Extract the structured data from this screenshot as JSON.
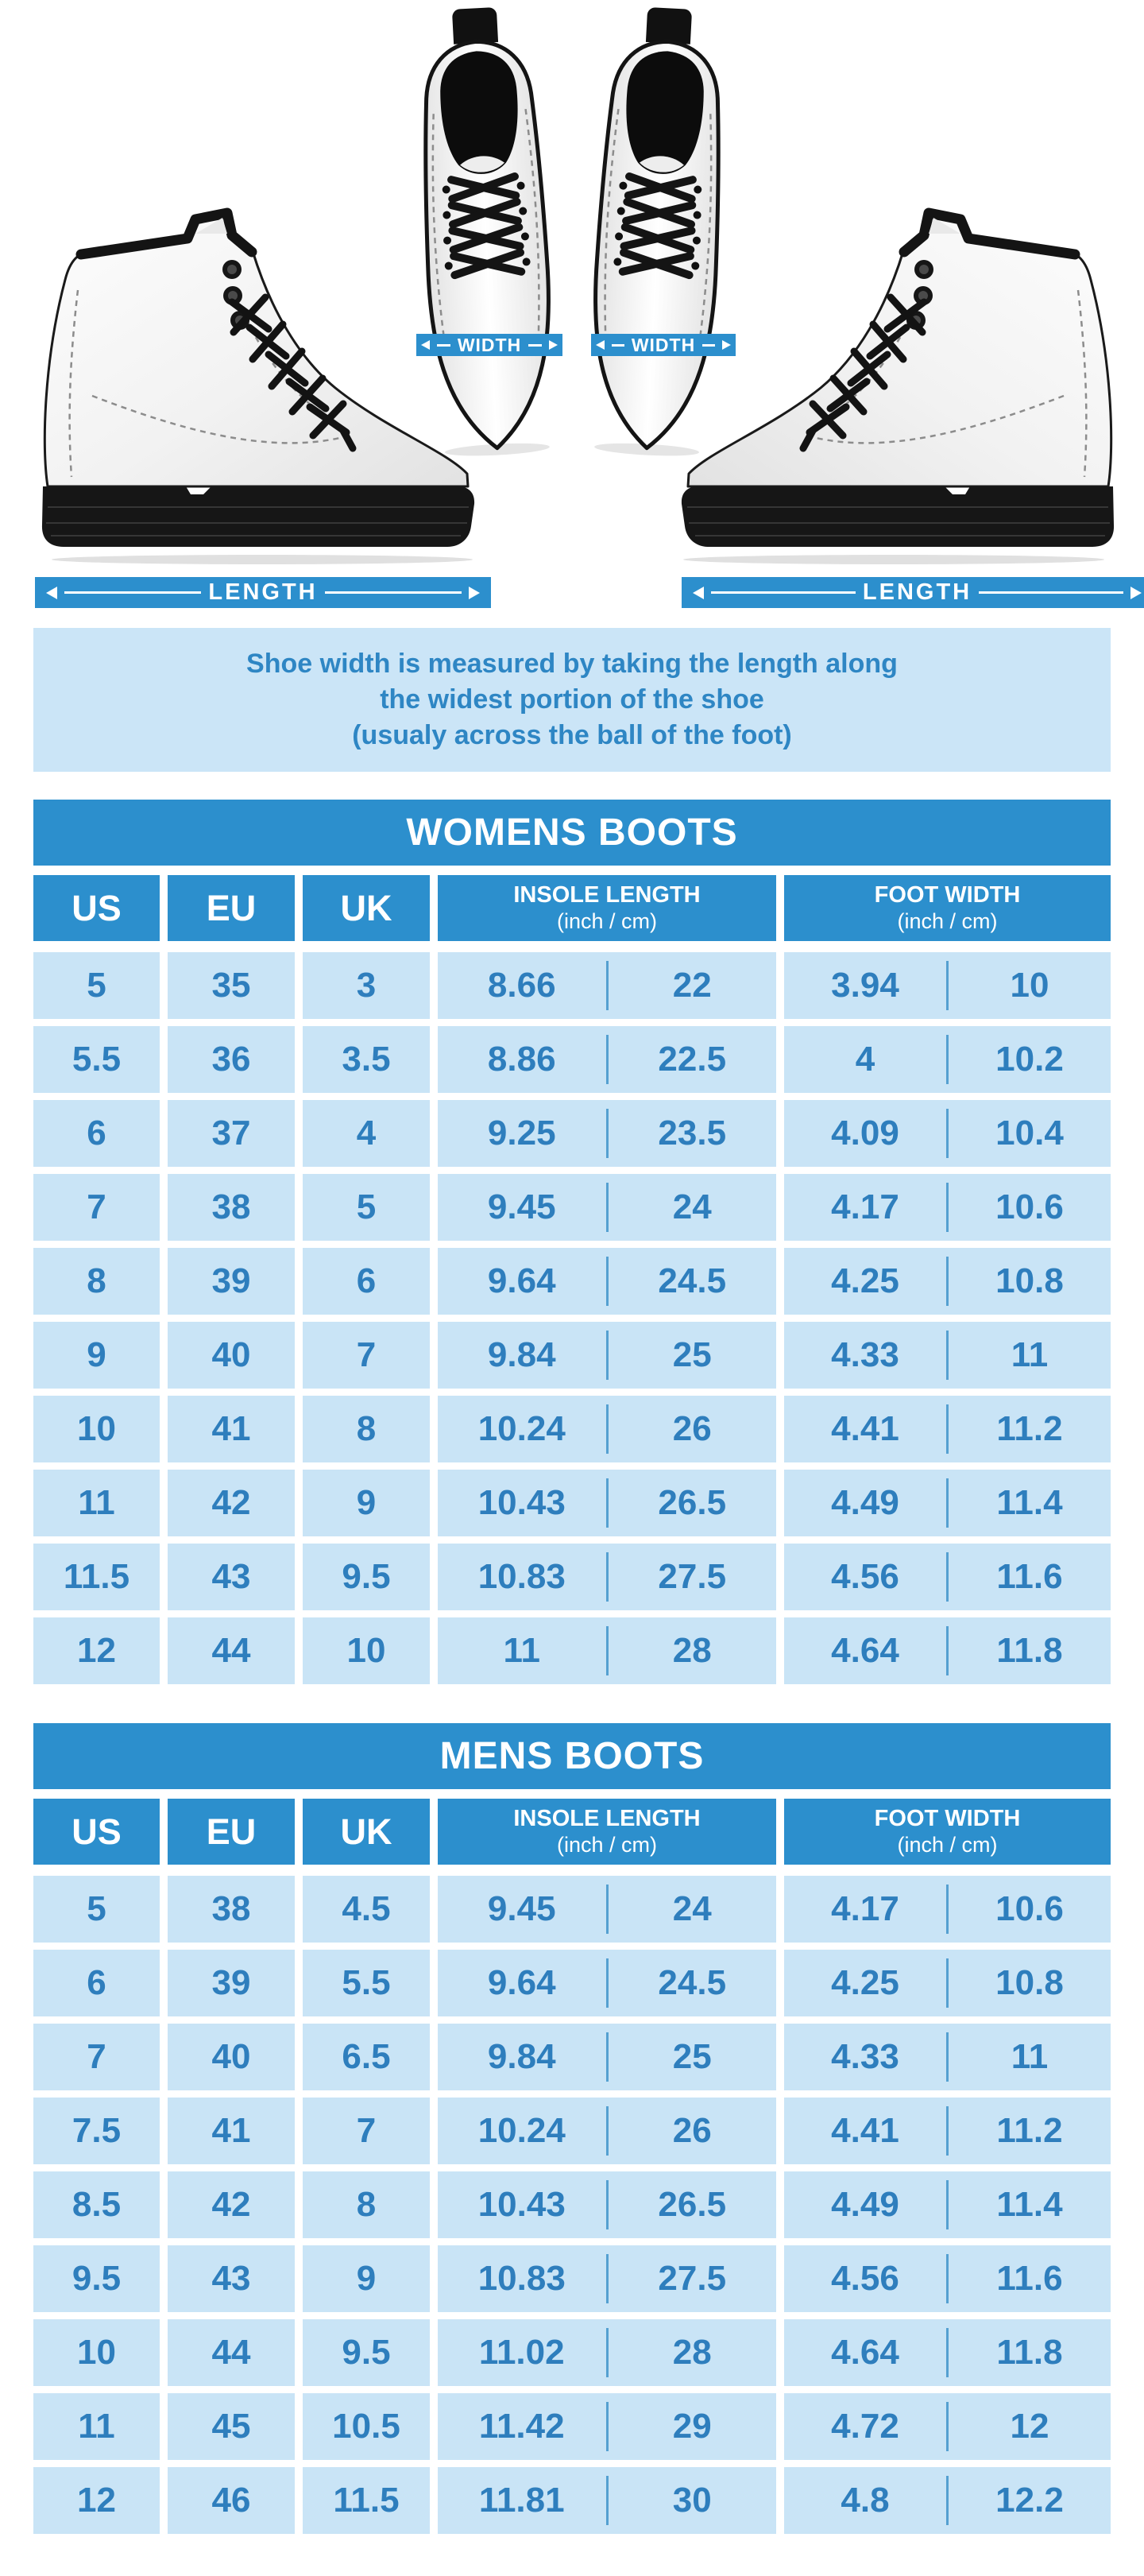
{
  "hero": {
    "width_label": "WIDTH",
    "length_label": "LENGTH"
  },
  "note": {
    "lines": [
      "Shoe width is measured by taking the length along",
      "the widest portion of the shoe",
      "(usualy across the ball of the foot)"
    ]
  },
  "tables": [
    {
      "title": "WOMENS BOOTS",
      "columns": {
        "us": "US",
        "eu": "EU",
        "uk": "UK",
        "insole": {
          "line1": "INSOLE LENGTH",
          "line2": "(inch / cm)"
        },
        "foot": {
          "line1": "FOOT WIDTH",
          "line2": "(inch / cm)"
        }
      },
      "rows": [
        [
          "5",
          "35",
          "3",
          "8.66",
          "22",
          "3.94",
          "10"
        ],
        [
          "5.5",
          "36",
          "3.5",
          "8.86",
          "22.5",
          "4",
          "10.2"
        ],
        [
          "6",
          "37",
          "4",
          "9.25",
          "23.5",
          "4.09",
          "10.4"
        ],
        [
          "7",
          "38",
          "5",
          "9.45",
          "24",
          "4.17",
          "10.6"
        ],
        [
          "8",
          "39",
          "6",
          "9.64",
          "24.5",
          "4.25",
          "10.8"
        ],
        [
          "9",
          "40",
          "7",
          "9.84",
          "25",
          "4.33",
          "11"
        ],
        [
          "10",
          "41",
          "8",
          "10.24",
          "26",
          "4.41",
          "11.2"
        ],
        [
          "11",
          "42",
          "9",
          "10.43",
          "26.5",
          "4.49",
          "11.4"
        ],
        [
          "11.5",
          "43",
          "9.5",
          "10.83",
          "27.5",
          "4.56",
          "11.6"
        ],
        [
          "12",
          "44",
          "10",
          "11",
          "28",
          "4.64",
          "11.8"
        ]
      ]
    },
    {
      "title": "MENS BOOTS",
      "columns": {
        "us": "US",
        "eu": "EU",
        "uk": "UK",
        "insole": {
          "line1": "INSOLE LENGTH",
          "line2": "(inch / cm)"
        },
        "foot": {
          "line1": "FOOT WIDTH",
          "line2": "(inch / cm)"
        }
      },
      "rows": [
        [
          "5",
          "38",
          "4.5",
          "9.45",
          "24",
          "4.17",
          "10.6"
        ],
        [
          "6",
          "39",
          "5.5",
          "9.64",
          "24.5",
          "4.25",
          "10.8"
        ],
        [
          "7",
          "40",
          "6.5",
          "9.84",
          "25",
          "4.33",
          "11"
        ],
        [
          "7.5",
          "41",
          "7",
          "10.24",
          "26",
          "4.41",
          "11.2"
        ],
        [
          "8.5",
          "42",
          "8",
          "10.43",
          "26.5",
          "4.49",
          "11.4"
        ],
        [
          "9.5",
          "43",
          "9",
          "10.83",
          "27.5",
          "4.56",
          "11.6"
        ],
        [
          "10",
          "44",
          "9.5",
          "11.02",
          "28",
          "4.64",
          "11.8"
        ],
        [
          "11",
          "45",
          "10.5",
          "11.42",
          "29",
          "4.72",
          "12"
        ],
        [
          "12",
          "46",
          "11.5",
          "11.81",
          "30",
          "4.8",
          "12.2"
        ]
      ]
    }
  ],
  "colors": {
    "bar_blue": "#2C8FCD",
    "cell_blue": "#C9E4F6",
    "value_text_blue": "#2E7EBD",
    "note_bg": "#CBE5F7",
    "note_text": "#2E86C4",
    "divider_blue": "#55A0D1"
  }
}
